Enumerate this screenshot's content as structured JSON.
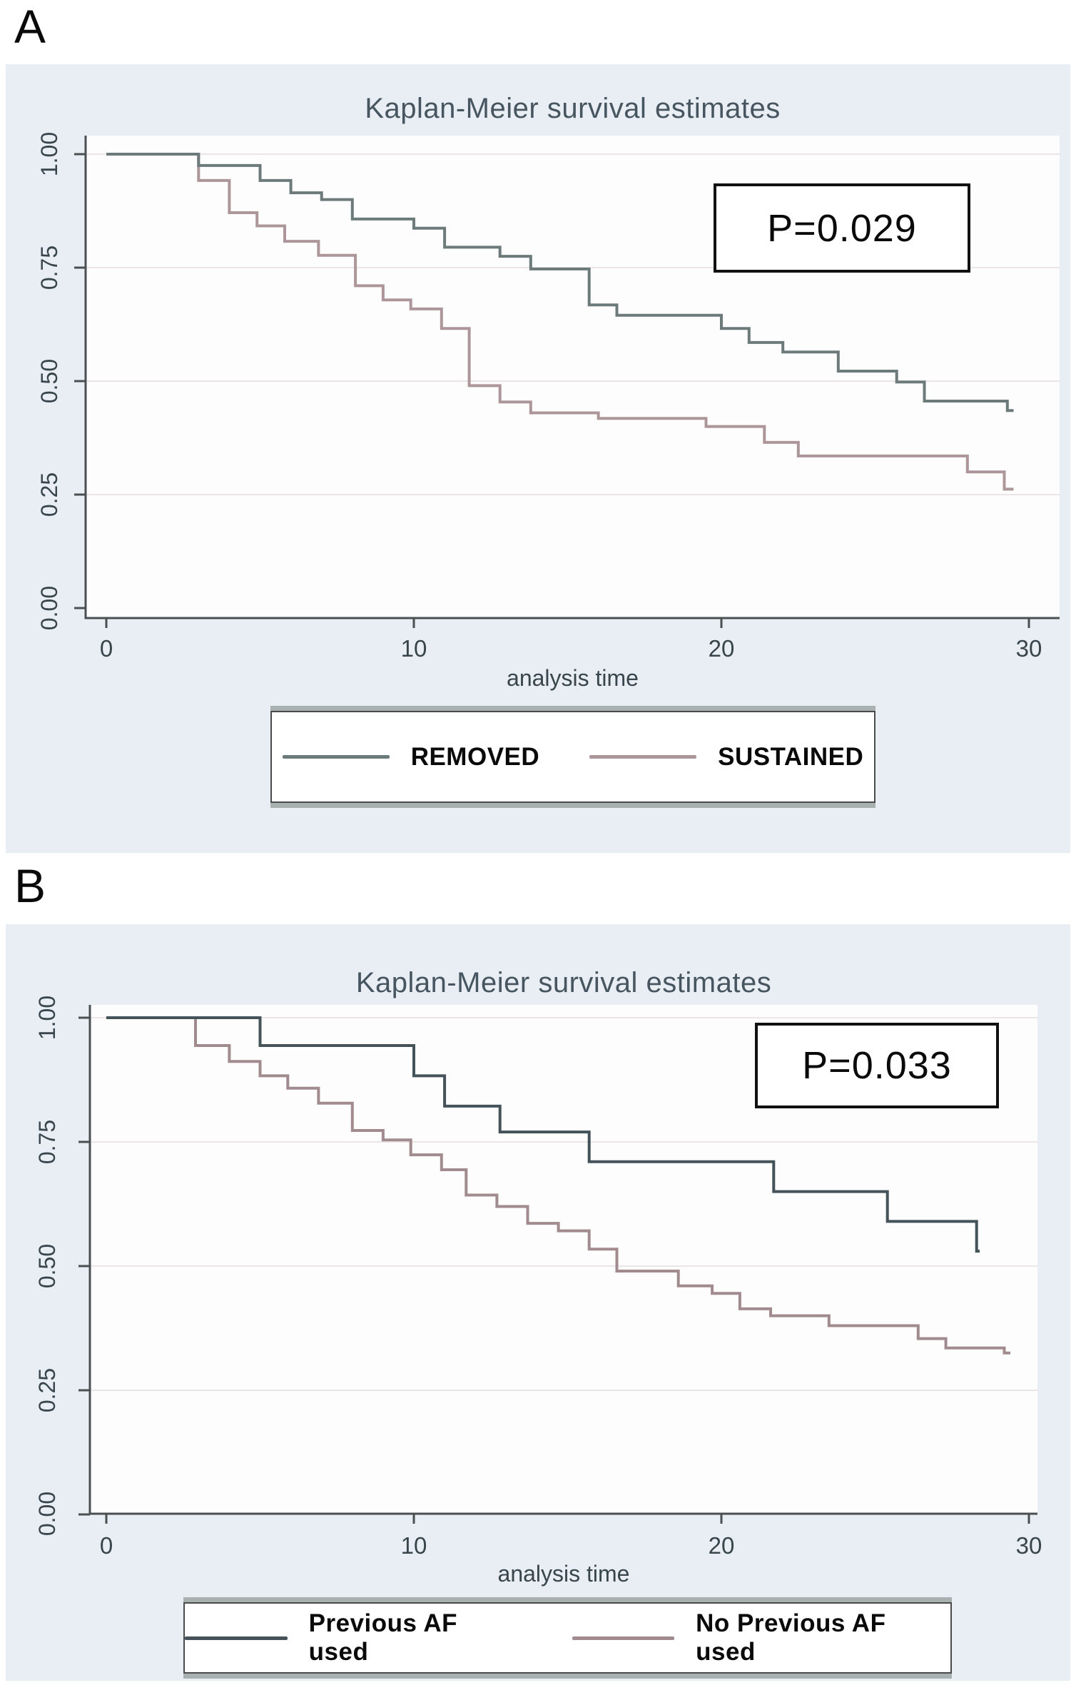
{
  "panels": [
    {
      "label": "A"
    },
    {
      "label": "B"
    }
  ],
  "theme": {
    "chart_background": "#e8eef3",
    "plot_background": "#fdfdfe",
    "gridline": "#ece5e6",
    "axis": "#4a4f52",
    "title_color": "#46555f",
    "tick_label_color": "#39454c",
    "panel_label_color": "#0a0a0a",
    "p_box_border": "#111111",
    "p_text_color": "#0a0a0a",
    "legend_background": "#ffffff",
    "legend_border": "#4a4a4a",
    "legend_bevel": "#a9b0b0",
    "legend_text_color": "#0a0a0a"
  },
  "chart_data": [
    {
      "type": "line",
      "variant": "kaplan-meier-step",
      "title": "Kaplan-Meier survival estimates",
      "xlabel": "analysis time",
      "p_value": "P=0.029",
      "x_ticks": [
        "0",
        "10",
        "20",
        "30"
      ],
      "y_ticks": [
        "0.00",
        "0.25",
        "0.50",
        "0.75",
        "1.00"
      ],
      "xlim": [
        0,
        31
      ],
      "ylim": [
        0,
        1.05
      ],
      "grid": true,
      "legend_position": "bottom-center",
      "series": [
        {
          "name": "REMOVED",
          "color": "#6d7a7a",
          "start": [
            0,
            1.0
          ],
          "drops": [
            [
              3,
              0.975
            ],
            [
              5,
              0.942
            ],
            [
              6,
              0.915
            ],
            [
              7,
              0.9
            ],
            [
              8,
              0.857
            ],
            [
              10,
              0.837
            ],
            [
              11,
              0.795
            ],
            [
              12.8,
              0.775
            ],
            [
              13.8,
              0.747
            ],
            [
              15.7,
              0.668
            ],
            [
              16.6,
              0.645
            ],
            [
              20,
              0.616
            ],
            [
              20.9,
              0.585
            ],
            [
              22,
              0.564
            ],
            [
              23.8,
              0.522
            ],
            [
              25.7,
              0.498
            ],
            [
              26.6,
              0.456
            ],
            [
              29.3,
              0.435
            ]
          ],
          "end_t": 29.5
        },
        {
          "name": "SUSTAINED",
          "color": "#ad969a",
          "start": [
            0,
            1.0
          ],
          "drops": [
            [
              3,
              0.942
            ],
            [
              4,
              0.871
            ],
            [
              4.9,
              0.842
            ],
            [
              5.8,
              0.808
            ],
            [
              6.9,
              0.777
            ],
            [
              8.1,
              0.71
            ],
            [
              9,
              0.679
            ],
            [
              9.9,
              0.659
            ],
            [
              10.9,
              0.616
            ],
            [
              11.8,
              0.49
            ],
            [
              12.8,
              0.454
            ],
            [
              13.8,
              0.43
            ],
            [
              16,
              0.418
            ],
            [
              19.5,
              0.4
            ],
            [
              21.4,
              0.365
            ],
            [
              22.5,
              0.335
            ],
            [
              28,
              0.3
            ],
            [
              29.2,
              0.262
            ]
          ],
          "end_t": 29.5
        }
      ]
    },
    {
      "type": "line",
      "variant": "kaplan-meier-step",
      "title": "Kaplan-Meier survival estimates",
      "xlabel": "analysis time",
      "p_value": "P=0.033",
      "x_ticks": [
        "0",
        "10",
        "20",
        "30"
      ],
      "y_ticks": [
        "0.00",
        "0.25",
        "0.50",
        "0.75",
        "1.00"
      ],
      "xlim": [
        0,
        31
      ],
      "ylim": [
        0,
        1.05
      ],
      "grid": true,
      "legend_position": "bottom-center",
      "series": [
        {
          "name": "Previous AF used",
          "color": "#44525a",
          "start": [
            0,
            1.0
          ],
          "drops": [
            [
              5,
              0.944
            ],
            [
              10,
              0.883
            ],
            [
              11,
              0.822
            ],
            [
              12.8,
              0.77
            ],
            [
              15.7,
              0.71
            ],
            [
              21.7,
              0.65
            ],
            [
              25.4,
              0.59
            ],
            [
              28.3,
              0.53
            ]
          ],
          "end_t": 28.4
        },
        {
          "name": "No Previous AF used",
          "color": "#a18b8f",
          "start": [
            0,
            1.0
          ],
          "drops": [
            [
              2.9,
              0.944
            ],
            [
              4,
              0.912
            ],
            [
              5,
              0.883
            ],
            [
              5.9,
              0.858
            ],
            [
              6.9,
              0.828
            ],
            [
              8,
              0.773
            ],
            [
              9,
              0.754
            ],
            [
              9.9,
              0.724
            ],
            [
              10.9,
              0.694
            ],
            [
              11.7,
              0.643
            ],
            [
              12.7,
              0.62
            ],
            [
              13.7,
              0.586
            ],
            [
              14.7,
              0.571
            ],
            [
              15.7,
              0.534
            ],
            [
              16.6,
              0.49
            ],
            [
              18.6,
              0.46
            ],
            [
              19.7,
              0.445
            ],
            [
              20.6,
              0.414
            ],
            [
              21.6,
              0.4
            ],
            [
              23.5,
              0.38
            ],
            [
              26.4,
              0.354
            ],
            [
              27.3,
              0.335
            ],
            [
              29.2,
              0.325
            ]
          ],
          "end_t": 29.4
        }
      ]
    }
  ]
}
